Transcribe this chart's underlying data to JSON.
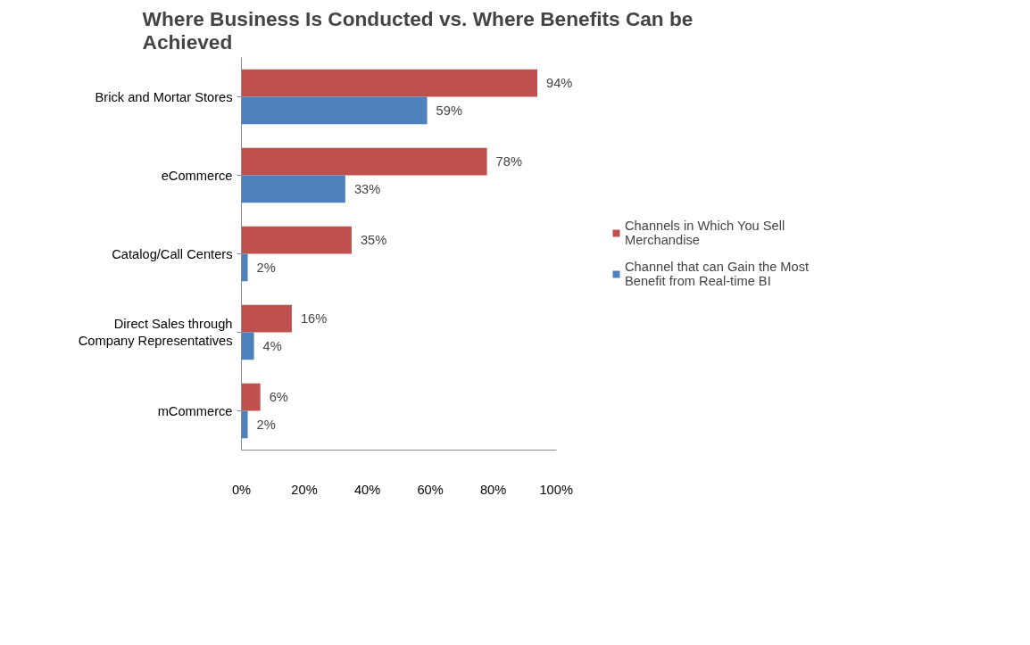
{
  "chart_data": {
    "type": "bar",
    "orientation": "horizontal",
    "title": "Where Business Is Conducted vs. Where Benefits Can be Achieved",
    "categories": [
      "Brick and Mortar Stores",
      "eCommerce",
      "Catalog/Call Centers",
      "Direct Sales through Company Representatives",
      "mCommerce"
    ],
    "series": [
      {
        "name": "Channels in Which You Sell Merchandise",
        "color": "#c0504d",
        "values": [
          94,
          78,
          35,
          16,
          6
        ],
        "value_labels": [
          "94%",
          "78%",
          "35%",
          "16%",
          "6%"
        ]
      },
      {
        "name": "Channel that can Gain the Most Benefit from Real-time BI",
        "color": "#4f81bd",
        "values": [
          59,
          33,
          2,
          4,
          2
        ],
        "value_labels": [
          "59%",
          "33%",
          "2%",
          "4%",
          "2%"
        ]
      }
    ],
    "xlim": [
      0,
      100
    ],
    "xticks": [
      {
        "value": 0,
        "label": "0%"
      },
      {
        "value": 20,
        "label": "20%"
      },
      {
        "value": 40,
        "label": "40%"
      },
      {
        "value": 60,
        "label": "60%"
      },
      {
        "value": 80,
        "label": "80%"
      },
      {
        "value": 100,
        "label": "100%"
      }
    ],
    "grid": false,
    "legend": "right"
  }
}
